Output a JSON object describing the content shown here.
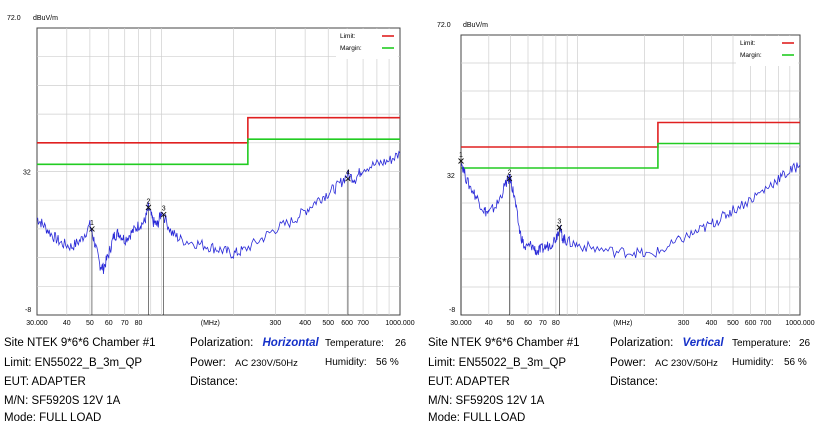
{
  "chart_data": [
    {
      "type": "line",
      "ylabel": "dBuV/m",
      "ytop_label": "72.0",
      "ymid_label": "32",
      "ybottom_label": "-8",
      "ylim": [
        -8,
        72
      ],
      "xlabel": "(MHz)",
      "x_scale": "log",
      "xlim": [
        30,
        1000
      ],
      "x_ticks": [
        {
          "v": 30,
          "label": "30.000"
        },
        {
          "v": 40,
          "label": "40"
        },
        {
          "v": 50,
          "label": "50"
        },
        {
          "v": 60,
          "label": "60"
        },
        {
          "v": 70,
          "label": "70"
        },
        {
          "v": 80,
          "label": "80"
        },
        {
          "v": 300,
          "label": "300"
        },
        {
          "v": 400,
          "label": "400"
        },
        {
          "v": 500,
          "label": "500"
        },
        {
          "v": 600,
          "label": "600"
        },
        {
          "v": 700,
          "label": "700"
        },
        {
          "v": 1000,
          "label": "1000.000"
        }
      ],
      "grid": true,
      "legend": {
        "placement": "top-right",
        "items": [
          {
            "label": "Limit:",
            "color": "#e02020"
          },
          {
            "label": "Margin:",
            "color": "#22cc22"
          }
        ]
      },
      "limit_line": {
        "color": "#e02020",
        "segments": [
          [
            30,
            230,
            40
          ],
          [
            230,
            1000,
            47
          ]
        ]
      },
      "margin_line": {
        "color": "#22cc22",
        "segments": [
          [
            30,
            230,
            34
          ],
          [
            230,
            1000,
            41
          ]
        ]
      },
      "trace": {
        "color": "#2a2ad8",
        "points": [
          [
            30,
            19
          ],
          [
            32,
            17
          ],
          [
            35,
            14
          ],
          [
            38,
            12
          ],
          [
            42,
            11
          ],
          [
            46,
            13
          ],
          [
            50,
            17
          ],
          [
            52,
            13
          ],
          [
            55,
            6
          ],
          [
            57,
            5
          ],
          [
            60,
            9
          ],
          [
            63,
            14
          ],
          [
            66,
            15
          ],
          [
            70,
            13
          ],
          [
            75,
            15
          ],
          [
            80,
            17
          ],
          [
            85,
            18
          ],
          [
            88,
            22
          ],
          [
            92,
            18
          ],
          [
            96,
            17
          ],
          [
            100,
            21
          ],
          [
            110,
            15
          ],
          [
            120,
            13
          ],
          [
            140,
            12
          ],
          [
            160,
            11
          ],
          [
            180,
            10
          ],
          [
            200,
            9
          ],
          [
            220,
            10
          ],
          [
            260,
            13
          ],
          [
            300,
            16
          ],
          [
            350,
            18
          ],
          [
            400,
            21
          ],
          [
            450,
            24
          ],
          [
            500,
            26
          ],
          [
            550,
            28
          ],
          [
            600,
            31
          ],
          [
            650,
            30
          ],
          [
            700,
            33
          ],
          [
            800,
            34
          ],
          [
            900,
            35
          ],
          [
            1000,
            37
          ]
        ]
      },
      "markers": [
        {
          "label": "1",
          "x": 51,
          "y": 16
        },
        {
          "label": "2",
          "x": 88,
          "y": 22
        },
        {
          "label": "3",
          "x": 102,
          "y": 20
        },
        {
          "label": "4",
          "x": 605,
          "y": 30
        }
      ]
    },
    {
      "type": "line",
      "ylabel": "dBuV/m",
      "ytop_label": "72.0",
      "ymid_label": "32",
      "ybottom_label": "-8",
      "ylim": [
        -8,
        72
      ],
      "xlabel": "(MHz)",
      "x_scale": "log",
      "xlim": [
        30,
        1000
      ],
      "x_ticks": [
        {
          "v": 30,
          "label": "30.000"
        },
        {
          "v": 40,
          "label": "40"
        },
        {
          "v": 50,
          "label": "50"
        },
        {
          "v": 60,
          "label": "60"
        },
        {
          "v": 70,
          "label": "70"
        },
        {
          "v": 80,
          "label": "80"
        },
        {
          "v": 300,
          "label": "300"
        },
        {
          "v": 400,
          "label": "400"
        },
        {
          "v": 500,
          "label": "500"
        },
        {
          "v": 600,
          "label": "600"
        },
        {
          "v": 700,
          "label": "700"
        },
        {
          "v": 1000,
          "label": "1000.000"
        }
      ],
      "grid": true,
      "legend": {
        "placement": "top-right",
        "items": [
          {
            "label": "Limit:",
            "color": "#e02020"
          },
          {
            "label": "Margin:",
            "color": "#22cc22"
          }
        ]
      },
      "limit_line": {
        "color": "#e02020",
        "segments": [
          [
            30,
            230,
            40
          ],
          [
            230,
            1000,
            47
          ]
        ]
      },
      "margin_line": {
        "color": "#22cc22",
        "segments": [
          [
            30,
            230,
            34
          ],
          [
            230,
            1000,
            41
          ]
        ]
      },
      "trace": {
        "color": "#2a2ad8",
        "points": [
          [
            30,
            36
          ],
          [
            32,
            30
          ],
          [
            35,
            26
          ],
          [
            38,
            22
          ],
          [
            40,
            21
          ],
          [
            44,
            24
          ],
          [
            48,
            30
          ],
          [
            50,
            31
          ],
          [
            52,
            26
          ],
          [
            55,
            16
          ],
          [
            58,
            11
          ],
          [
            62,
            12
          ],
          [
            66,
            10
          ],
          [
            70,
            11
          ],
          [
            75,
            12
          ],
          [
            80,
            14
          ],
          [
            83,
            17
          ],
          [
            86,
            14
          ],
          [
            90,
            13
          ],
          [
            100,
            12
          ],
          [
            120,
            11
          ],
          [
            150,
            10
          ],
          [
            180,
            10
          ],
          [
            210,
            9
          ],
          [
            250,
            11
          ],
          [
            300,
            14
          ],
          [
            350,
            16
          ],
          [
            400,
            18
          ],
          [
            450,
            20
          ],
          [
            500,
            22
          ],
          [
            600,
            25
          ],
          [
            700,
            28
          ],
          [
            800,
            31
          ],
          [
            900,
            33
          ],
          [
            1000,
            35
          ]
        ]
      },
      "markers": [
        {
          "label": "1",
          "x": 30,
          "y": 36
        },
        {
          "label": "2",
          "x": 49.5,
          "y": 31
        },
        {
          "label": "3",
          "x": 83,
          "y": 17
        }
      ]
    }
  ],
  "info": [
    {
      "site": "Site NTEK 9*6*6 Chamber #1",
      "limit": "Limit: EN55022_B_3m_QP",
      "eut": "EUT: ADAPTER",
      "mn": "M/N:  SF5920S 12V 1A",
      "mode": "Mode:  FULL LOAD",
      "polarization_label": "Polarization:",
      "polarization_value": "Horizontal",
      "power_label": "Power:",
      "power_value": "AC 230V/50Hz",
      "distance_label": "Distance:",
      "temperature_label": "Temperature:",
      "temperature_value": "26",
      "humidity_label": "Humidity:",
      "humidity_value": "56 %"
    },
    {
      "site": "Site NTEK 9*6*6 Chamber #1",
      "limit": "Limit: EN55022_B_3m_QP",
      "eut": "EUT: ADAPTER",
      "mn": "M/N:  SF5920S 12V 1A",
      "mode": "Mode:  FULL LOAD",
      "polarization_label": "Polarization:",
      "polarization_value": "Vertical",
      "power_label": "Power:",
      "power_value": "AC 230V/50Hz",
      "distance_label": "Distance:",
      "temperature_label": "Temperature:",
      "temperature_value": "26",
      "humidity_label": "Humidity:",
      "humidity_value": "56 %"
    }
  ]
}
